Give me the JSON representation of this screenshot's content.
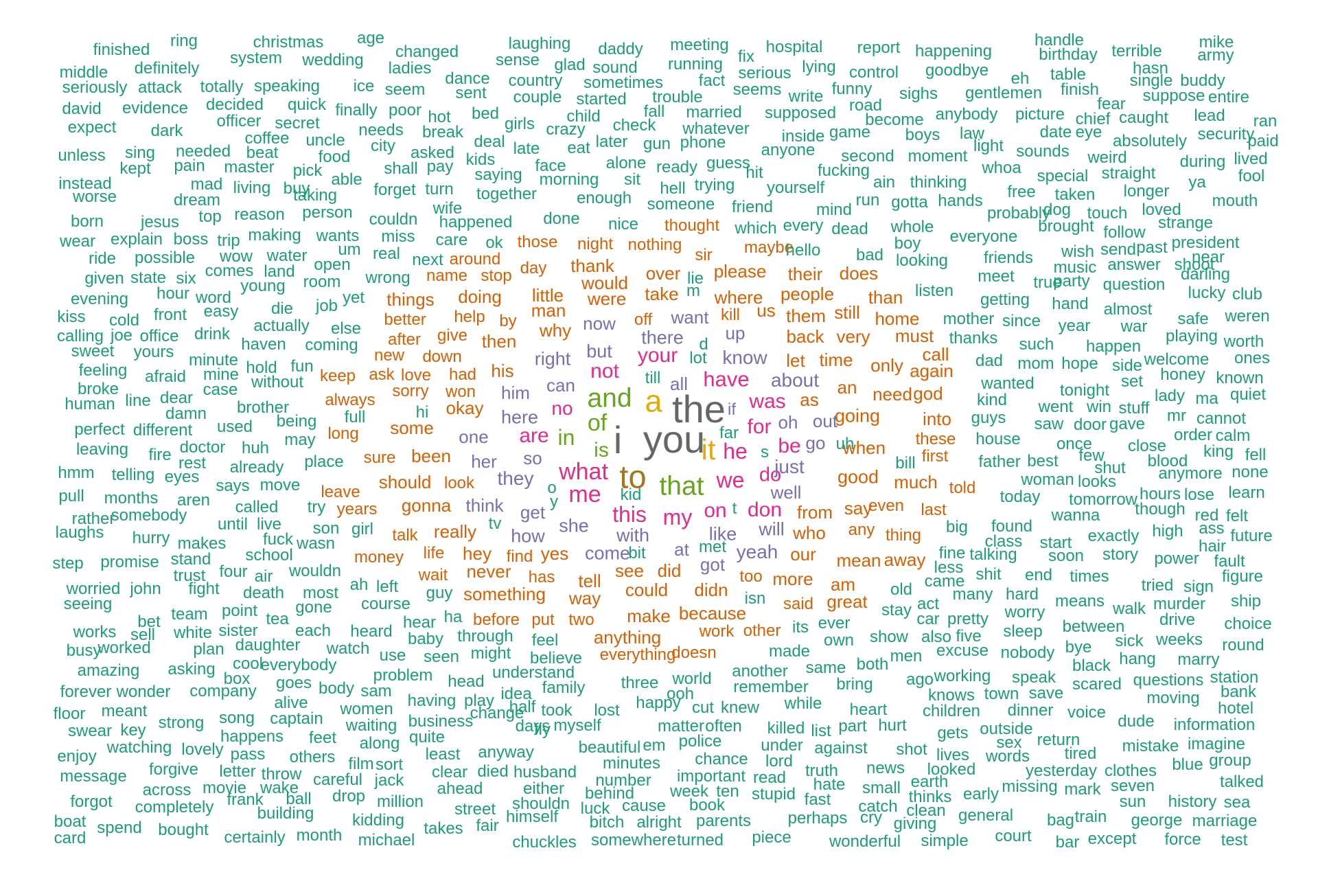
{
  "palette": {
    "c0": "#1b9e77",
    "c1": "#d95f02",
    "c2": "#7570b3",
    "c3": "#e7298a",
    "c4": "#66a61e",
    "c5": "#e6ab02",
    "c6": "#a6761d",
    "c7": "#666666"
  },
  "tiers": [
    {
      "color": "c7",
      "words": [
        "the",
        "i",
        "you"
      ]
    },
    {
      "color": "c6",
      "words": [
        "to"
      ]
    },
    {
      "color": "c5",
      "words": [
        "a",
        "it"
      ]
    },
    {
      "color": "c4",
      "words": [
        "and",
        "that",
        "of",
        "in",
        "is"
      ]
    },
    {
      "color": "c3",
      "words": [
        "what",
        "me",
        "this",
        "my",
        "we",
        "he",
        "have",
        "your",
        "was",
        "for",
        "be",
        "are",
        "no",
        "not",
        "don",
        "do",
        "on"
      ]
    },
    {
      "color": "c2",
      "words": [
        "know",
        "just",
        "so",
        "they",
        "can",
        "but",
        "there",
        "all",
        "like",
        "get",
        "right",
        "she",
        "with",
        "here",
        "her",
        "him",
        "now",
        "go",
        "out",
        "about",
        "one",
        "how",
        "come",
        "think",
        "got",
        "well",
        "will",
        "want",
        "yeah",
        "up",
        "oh",
        "if",
        "at"
      ]
    },
    {
      "color": "c1",
      "words": [
        "did",
        "see",
        "could",
        "his",
        "good",
        "going",
        "who",
        "from",
        "when",
        "say",
        "why",
        "okay",
        "back",
        "take",
        "time",
        "would",
        "were",
        "man",
        "where",
        "people",
        "please",
        "let",
        "need",
        "god",
        "an",
        "as",
        "thank",
        "been",
        "some",
        "mean",
        "gonna",
        "really",
        "hey",
        "tell",
        "never",
        "our",
        "more",
        "too",
        "has",
        "way",
        "didn",
        "because",
        "make",
        "something",
        "said",
        "great",
        "anything",
        "work",
        "other",
        "doing",
        "little",
        "over",
        "off",
        "things",
        "better",
        "help",
        "then",
        "by",
        "give",
        "after",
        "new",
        "down",
        "love",
        "had",
        "sorry",
        "won",
        "keep",
        "ask",
        "always",
        "long",
        "sure",
        "should",
        "look",
        "years",
        "leave",
        "talk",
        "money",
        "life",
        "wait",
        "yes",
        "find",
        "before",
        "put",
        "two",
        "doesn",
        "everything",
        "told",
        "last",
        "first",
        "these",
        "even",
        "much",
        "any",
        "thing",
        "am",
        "away",
        "only",
        "must",
        "very",
        "still",
        "home",
        "call",
        "again",
        "into",
        "than",
        "does",
        "their",
        "them",
        "us",
        "kill",
        "maybe",
        "sir",
        "those",
        "night",
        "nothing",
        "thought",
        "around",
        "day",
        "name",
        "stop"
      ]
    },
    {
      "color": "c0",
      "words": [
        "finished",
        "ring",
        "christmas",
        "age",
        "changed",
        "laughing",
        "daddy",
        "meeting",
        "hospital",
        "report",
        "happening",
        "handle",
        "terrible",
        "mike",
        "middle",
        "definitely",
        "system",
        "wedding",
        "ladies",
        "sense",
        "glad",
        "sound",
        "running",
        "fix",
        "serious",
        "lying",
        "control",
        "goodbye",
        "birthday",
        "eh",
        "table",
        "hasn",
        "army",
        "seriously",
        "attack",
        "totally",
        "speaking",
        "ice",
        "seem",
        "dance",
        "country",
        "sometimes",
        "fact",
        "seems",
        "write",
        "funny",
        "sighs",
        "gentlemen",
        "finish",
        "single",
        "buddy",
        "david",
        "evidence",
        "decided",
        "quick",
        "finally",
        "poor",
        "sent",
        "couple",
        "started",
        "trouble",
        "road",
        "supposed",
        "fear",
        "suppose",
        "entire",
        "expect",
        "dark",
        "officer",
        "secret",
        "hot",
        "bed",
        "child",
        "fall",
        "married",
        "become",
        "anybody",
        "picture",
        "chief",
        "caught",
        "lead",
        "ran",
        "coffee",
        "uncle",
        "needs",
        "break",
        "deal",
        "girls",
        "crazy",
        "check",
        "whatever",
        "inside",
        "game",
        "boys",
        "law",
        "date",
        "eye",
        "absolutely",
        "security",
        "unless",
        "sing",
        "needed",
        "beat",
        "food",
        "city",
        "asked",
        "kids",
        "late",
        "eat",
        "later",
        "gun",
        "phone",
        "anyone",
        "second",
        "moment",
        "light",
        "sounds",
        "weird",
        "during",
        "lived",
        "paid",
        "kept",
        "pain",
        "master",
        "pick",
        "shall",
        "pay",
        "face",
        "alone",
        "ready",
        "guess",
        "hit",
        "fucking",
        "whoa",
        "special",
        "straight",
        "fool",
        "instead",
        "mad",
        "living",
        "buy",
        "able",
        "forget",
        "turn",
        "saying",
        "morning",
        "sit",
        "hell",
        "trying",
        "yourself",
        "ain",
        "thinking",
        "free",
        "taken",
        "longer",
        "ya",
        "worse",
        "dream",
        "taking",
        "together",
        "enough",
        "someone",
        "friend",
        "mind",
        "run",
        "gotta",
        "hands",
        "probably",
        "dog",
        "touch",
        "loved",
        "mouth",
        "born",
        "jesus",
        "top",
        "reason",
        "person",
        "couldn",
        "wife",
        "happened",
        "done",
        "nice",
        "which",
        "every",
        "dead",
        "whole",
        "everyone",
        "brought",
        "follow",
        "strange",
        "wear",
        "explain",
        "boss",
        "trip",
        "making",
        "wants",
        "miss",
        "ok",
        "care",
        "hello",
        "bad",
        "boy",
        "looking",
        "friends",
        "wish",
        "send",
        "past",
        "president",
        "ride",
        "possible",
        "wow",
        "water",
        "um",
        "open",
        "real",
        "next",
        "meet",
        "music",
        "answer",
        "shoot",
        "near",
        "given",
        "state",
        "six",
        "comes",
        "land",
        "young",
        "room",
        "wrong",
        "lie",
        "true",
        "party",
        "question",
        "darling",
        "evening",
        "hour",
        "word",
        "die",
        "job",
        "yet",
        "listen",
        "getting",
        "hand",
        "almost",
        "lucky",
        "club",
        "kiss",
        "cold",
        "front",
        "easy",
        "m",
        "mother",
        "since",
        "year",
        "war",
        "safe",
        "weren",
        "calling",
        "joe",
        "office",
        "drink",
        "actually",
        "else",
        "thanks",
        "such",
        "happen",
        "playing",
        "worth",
        "sweet",
        "yours",
        "minute",
        "haven",
        "coming",
        "d",
        "lot",
        "dad",
        "mom",
        "hope",
        "side",
        "welcome",
        "ones",
        "feeling",
        "afraid",
        "mine",
        "hold",
        "fun",
        "till",
        "wanted",
        "tonight",
        "honey",
        "known",
        "broke",
        "case",
        "without",
        "kind",
        "set",
        "lady",
        "ma",
        "quiet",
        "human",
        "line",
        "dear",
        "brother",
        "hi",
        "went",
        "win",
        "stuff",
        "mr",
        "cannot",
        "perfect",
        "different",
        "damn",
        "full",
        "guys",
        "saw",
        "door",
        "gave",
        "leaving",
        "used",
        "being",
        "far",
        "house",
        "once",
        "order",
        "calm",
        "fire",
        "doctor",
        "huh",
        "may",
        "s",
        "few",
        "close",
        "king",
        "fell",
        "rest",
        "already",
        "place",
        "uh",
        "bill",
        "father",
        "best",
        "shut",
        "blood",
        "hmm",
        "telling",
        "eyes",
        "says",
        "move",
        "o",
        "woman",
        "looks",
        "anymore",
        "none",
        "pull",
        "months",
        "aren",
        "kid",
        "today",
        "hours",
        "lose",
        "learn",
        "called",
        "try",
        "y",
        "tomorrow",
        "though",
        "rather",
        "somebody",
        "until",
        "live",
        "t",
        "found",
        "wanna",
        "red",
        "felt",
        "laughs",
        "hurry",
        "fuck",
        "son",
        "girl",
        "tv",
        "big",
        "class",
        "start",
        "exactly",
        "high",
        "ass",
        "hair",
        "future",
        "makes",
        "wasn",
        "bit",
        "met",
        "fine",
        "talking",
        "soon",
        "story",
        "power",
        "fault",
        "step",
        "promise",
        "stand",
        "school",
        "less",
        "trust",
        "four",
        "air",
        "wouldn",
        "shit",
        "end",
        "times",
        "figure",
        "worried",
        "john",
        "fight",
        "ah",
        "left",
        "came",
        "tried",
        "sign",
        "seeing",
        "death",
        "most",
        "guy",
        "old",
        "act",
        "many",
        "hard",
        "means",
        "walk",
        "murder",
        "ship",
        "team",
        "point",
        "tea",
        "gone",
        "course",
        "isn",
        "stay",
        "pretty",
        "worry",
        "drive",
        "choice",
        "bet",
        "each",
        "heard",
        "hear",
        "ha",
        "its",
        "ever",
        "car",
        "between",
        "works",
        "sell",
        "white",
        "sister",
        "baby",
        "through",
        "feel",
        "own",
        "show",
        "also",
        "five",
        "sleep",
        "sick",
        "weeks",
        "round",
        "busy",
        "worked",
        "plan",
        "daughter",
        "watch",
        "use",
        "seen",
        "might",
        "believe",
        "made",
        "men",
        "excuse",
        "nobody",
        "bye",
        "hang",
        "marry",
        "amazing",
        "asking",
        "cool",
        "everybody",
        "problem",
        "understand",
        "family",
        "another",
        "same",
        "both",
        "ago",
        "black",
        "station",
        "box",
        "goes",
        "body",
        "sam",
        "head",
        "three",
        "world",
        "remember",
        "bring",
        "working",
        "speak",
        "scared",
        "questions",
        "forever",
        "wonder",
        "company",
        "idea",
        "ooh",
        "knows",
        "town",
        "save",
        "moving",
        "bank",
        "alive",
        "women",
        "having",
        "play",
        "half",
        "took",
        "lost",
        "happy",
        "cut",
        "knew",
        "while",
        "heart",
        "children",
        "dinner",
        "voice",
        "hotel",
        "floor",
        "meant",
        "captain",
        "business",
        "change",
        "days",
        "matter",
        "often",
        "killed",
        "list",
        "part",
        "hurt",
        "dude",
        "information",
        "swear",
        "key",
        "strong",
        "song",
        "waiting",
        "fly",
        "myself",
        "gets",
        "outside",
        "happens",
        "feet",
        "quite",
        "police",
        "under",
        "sex",
        "return",
        "enjoy",
        "watching",
        "lovely",
        "pass",
        "others",
        "along",
        "least",
        "anyway",
        "beautiful",
        "em",
        "chance",
        "lord",
        "against",
        "shot",
        "lives",
        "tired",
        "mistake",
        "imagine",
        "message",
        "forgive",
        "letter",
        "throw",
        "film",
        "sort",
        "clear",
        "died",
        "husband",
        "minutes",
        "important",
        "read",
        "truth",
        "news",
        "looked",
        "words",
        "yesterday",
        "clothes",
        "blue",
        "group",
        "across",
        "movie",
        "wake",
        "careful",
        "jack",
        "ahead",
        "number",
        "either",
        "behind",
        "week",
        "ten",
        "stupid",
        "hate",
        "small",
        "earth",
        "missing",
        "mark",
        "seven",
        "talked",
        "forgot",
        "frank",
        "ball",
        "drop",
        "shouldn",
        "cause",
        "fast",
        "catch",
        "thinks",
        "early",
        "sun",
        "history",
        "sea",
        "completely",
        "building",
        "million",
        "street",
        "luck",
        "book",
        "perhaps",
        "cry",
        "clean",
        "general",
        "bag",
        "train",
        "george",
        "marriage",
        "boat",
        "spend",
        "bought",
        "kidding",
        "himself",
        "bitch",
        "alright",
        "parents",
        "giving",
        "card",
        "certainly",
        "month",
        "michael",
        "takes",
        "fair",
        "chuckles",
        "somewhere",
        "turned",
        "piece",
        "wonderful",
        "simple",
        "court",
        "bar",
        "except",
        "force",
        "test"
      ]
    }
  ]
}
